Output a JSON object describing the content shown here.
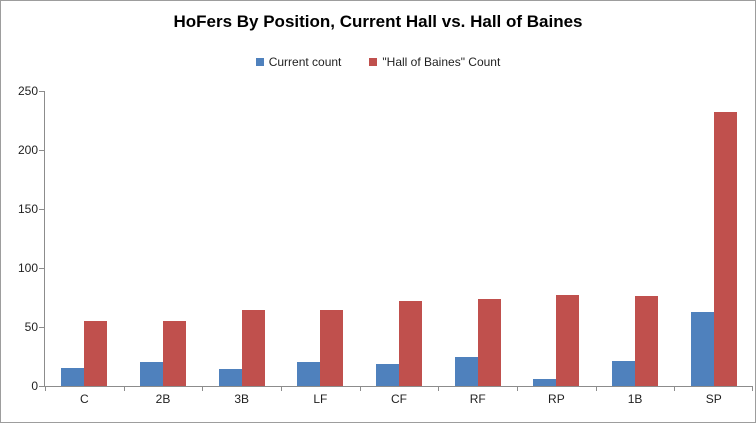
{
  "chart_data": {
    "type": "bar",
    "title": "HoFers By Position, Current Hall vs. Hall of Baines",
    "categories": [
      "C",
      "2B",
      "3B",
      "LF",
      "CF",
      "RF",
      "RP",
      "1B",
      "SP"
    ],
    "series": [
      {
        "name": "Current count",
        "color": "#4F81BD",
        "values": [
          15,
          20,
          14,
          20,
          19,
          25,
          6,
          21,
          63
        ]
      },
      {
        "name": "\"Hall of Baines\" Count",
        "color": "#C0504D",
        "values": [
          55,
          55,
          64,
          64,
          72,
          74,
          77,
          76,
          232
        ]
      }
    ],
    "xlabel": "",
    "ylabel": "",
    "ylim": [
      0,
      250
    ],
    "yticks": [
      0,
      50,
      100,
      150,
      200,
      250
    ],
    "grid": false,
    "legend_position": "top-center"
  },
  "colors": {
    "axis": "#8c8c8c",
    "frame_border": "#9d9d9d",
    "text": "#1f1f1f",
    "title_text": "#000000",
    "background": "#ffffff",
    "series_blue": "#4F81BD",
    "series_red": "#C0504D"
  }
}
